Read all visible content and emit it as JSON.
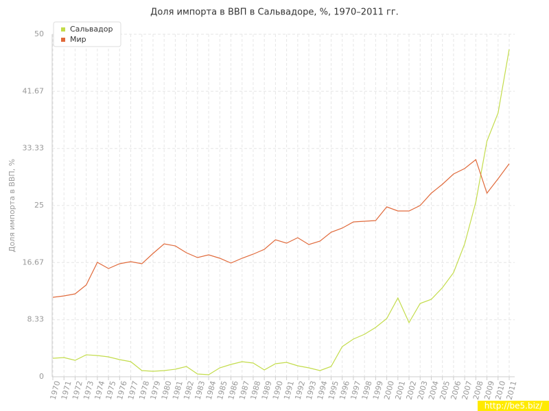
{
  "chart_data": {
    "type": "line",
    "title": "Доля импорта в ВВП в Сальвадоре, %, 1970–2011 гг.",
    "y_label": "Доля импорта в ВВП, %",
    "watermark": "http://be5.biz/",
    "categories": [
      "1970",
      "1971",
      "1972",
      "1973",
      "1974",
      "1975",
      "1976",
      "1977",
      "1978",
      "1979",
      "1980",
      "1981",
      "1982",
      "1983",
      "1984",
      "1985",
      "1986",
      "1987",
      "1988",
      "1989",
      "1990",
      "1991",
      "1992",
      "1993",
      "1994",
      "1995",
      "1996",
      "1997",
      "1998",
      "1999",
      "2000",
      "2001",
      "2002",
      "2003",
      "2004",
      "2005",
      "2006",
      "2007",
      "2008",
      "2009",
      "2010",
      "2011"
    ],
    "series": [
      {
        "name": "Сальвадор",
        "color": "#c3dc4a",
        "values": [
          2.7,
          2.8,
          2.4,
          3.2,
          3.1,
          2.9,
          2.5,
          2.2,
          0.9,
          0.8,
          0.9,
          1.1,
          1.5,
          0.4,
          0.3,
          1.3,
          1.8,
          2.2,
          2.0,
          1.0,
          1.9,
          2.1,
          1.6,
          1.3,
          0.9,
          1.5,
          4.4,
          5.5,
          6.2,
          7.2,
          8.5,
          11.5,
          7.9,
          10.7,
          11.3,
          13.0,
          15.2,
          19.4,
          25.5,
          34.4,
          38.5,
          47.8
        ]
      },
      {
        "name": "Мир",
        "color": "#e0693a",
        "values": [
          11.6,
          11.8,
          12.1,
          13.4,
          16.7,
          15.8,
          16.5,
          16.8,
          16.5,
          18.0,
          19.4,
          19.1,
          18.1,
          17.4,
          17.8,
          17.3,
          16.6,
          17.3,
          17.9,
          18.6,
          20.0,
          19.5,
          20.3,
          19.3,
          19.8,
          21.1,
          21.7,
          22.6,
          22.7,
          22.8,
          24.8,
          24.2,
          24.2,
          25.0,
          26.8,
          28.1,
          29.6,
          30.4,
          31.7,
          26.8,
          28.9,
          31.1
        ]
      }
    ],
    "ylim": [
      0,
      50
    ],
    "yticks": [
      0,
      8.33,
      16.67,
      25,
      33.33,
      41.67,
      50
    ],
    "grid": true,
    "legend": "top-left"
  }
}
